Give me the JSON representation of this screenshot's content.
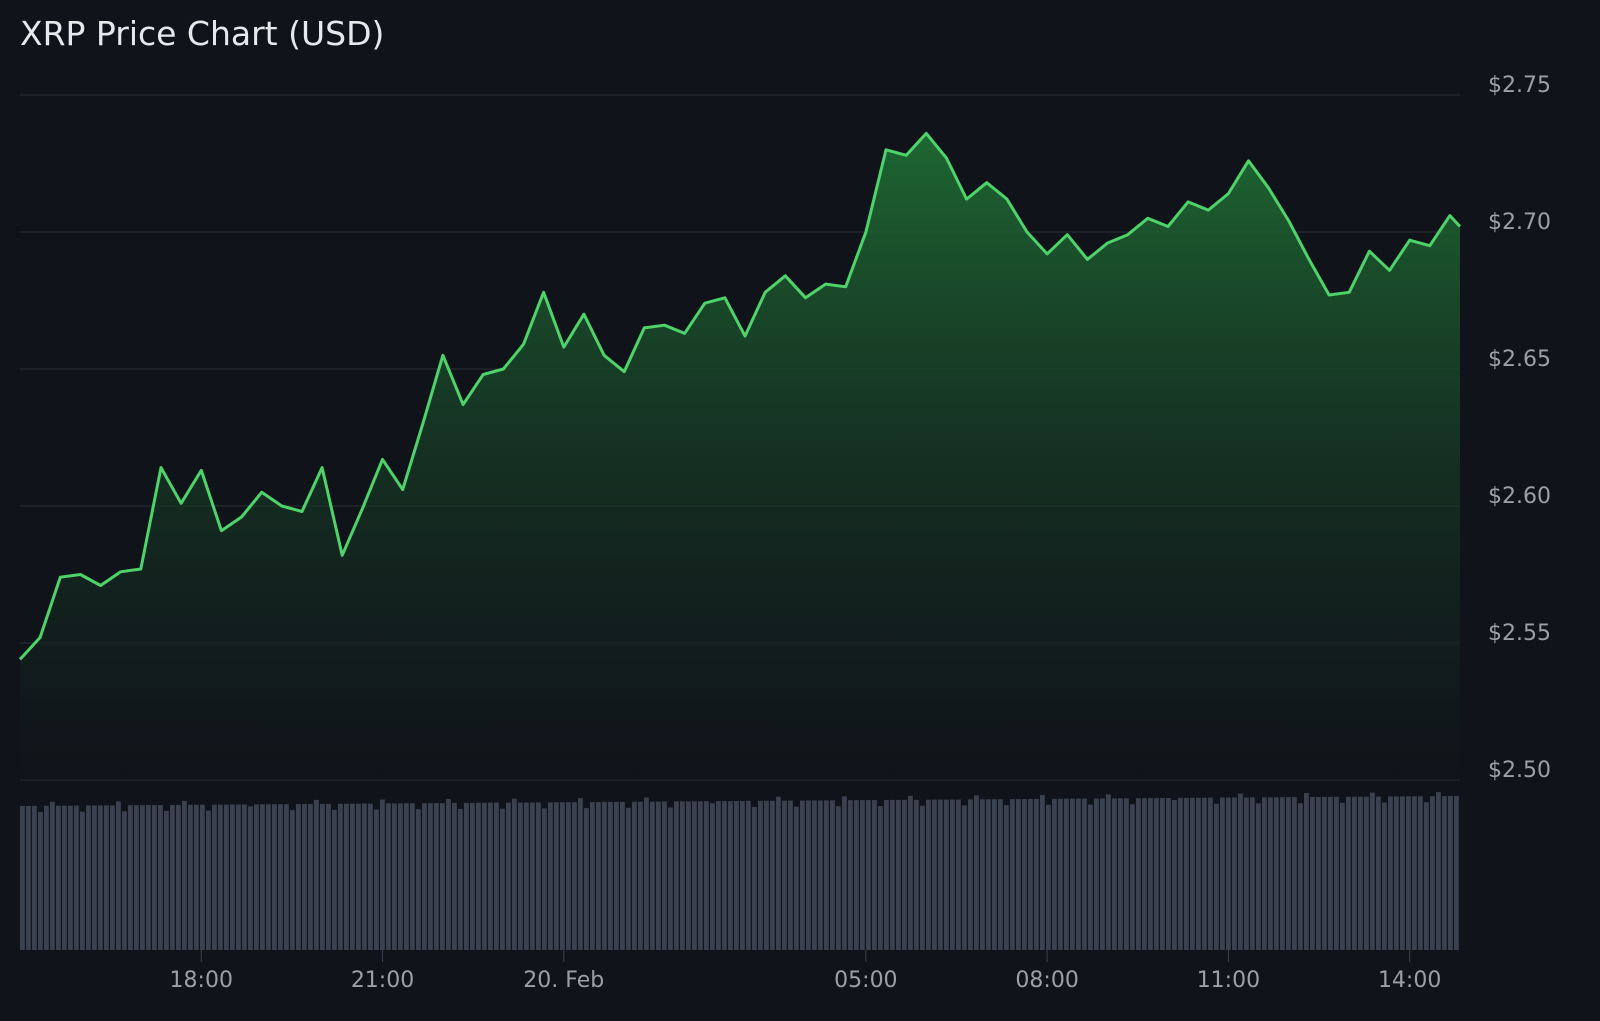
{
  "chart_data": {
    "type": "area",
    "title": "XRP Price Chart (USD)",
    "y_unit_prefix": "$",
    "y_ticks": [
      "$2.75",
      "$2.70",
      "$2.65",
      "$2.60",
      "$2.55",
      "$2.50"
    ],
    "y_tick_values": [
      2.75,
      2.7,
      2.65,
      2.6,
      2.55,
      2.5
    ],
    "ylim": [
      2.5,
      2.75
    ],
    "x_ticks": [
      "18:00",
      "21:00",
      "20. Feb",
      "05:00",
      "08:00",
      "11:00",
      "14:00"
    ],
    "x_tick_times": [
      "2025-02-19 18:00",
      "2025-02-19 21:00",
      "2025-02-20 00:00",
      "2025-02-20 05:00",
      "2025-02-20 08:00",
      "2025-02-20 11:00",
      "2025-02-20 14:00"
    ],
    "grid": "horizontal",
    "line_color": "#4ed36a",
    "fill_color": "#1f6b33",
    "volume_color": "#3a4250",
    "series": [
      {
        "x": [
          "2025-02-19 15:00",
          "2025-02-19 15:20",
          "2025-02-19 15:40",
          "2025-02-19 16:00",
          "2025-02-19 16:20",
          "2025-02-19 16:40",
          "2025-02-19 17:00",
          "2025-02-19 17:20",
          "2025-02-19 17:40",
          "2025-02-19 18:00",
          "2025-02-19 18:20",
          "2025-02-19 18:40",
          "2025-02-19 19:00",
          "2025-02-19 19:20",
          "2025-02-19 19:40",
          "2025-02-19 20:00",
          "2025-02-19 20:20",
          "2025-02-19 20:40",
          "2025-02-19 21:00",
          "2025-02-19 21:20",
          "2025-02-19 21:40",
          "2025-02-19 22:00",
          "2025-02-19 22:20",
          "2025-02-19 22:40",
          "2025-02-19 23:00",
          "2025-02-19 23:20",
          "2025-02-19 23:40",
          "2025-02-20 00:00",
          "2025-02-20 00:20",
          "2025-02-20 00:40",
          "2025-02-20 01:00",
          "2025-02-20 01:20",
          "2025-02-20 01:40",
          "2025-02-20 02:00",
          "2025-02-20 02:20",
          "2025-02-20 02:40",
          "2025-02-20 03:00",
          "2025-02-20 03:20",
          "2025-02-20 03:40",
          "2025-02-20 04:00",
          "2025-02-20 04:20",
          "2025-02-20 04:40",
          "2025-02-20 05:00",
          "2025-02-20 05:20",
          "2025-02-20 05:40",
          "2025-02-20 06:00",
          "2025-02-20 06:20",
          "2025-02-20 06:40",
          "2025-02-20 07:00",
          "2025-02-20 07:20",
          "2025-02-20 07:40",
          "2025-02-20 08:00",
          "2025-02-20 08:20",
          "2025-02-20 08:40",
          "2025-02-20 09:00",
          "2025-02-20 09:20",
          "2025-02-20 09:40",
          "2025-02-20 10:00",
          "2025-02-20 10:20",
          "2025-02-20 10:40",
          "2025-02-20 11:00",
          "2025-02-20 11:20",
          "2025-02-20 11:40",
          "2025-02-20 12:00",
          "2025-02-20 12:20",
          "2025-02-20 12:40",
          "2025-02-20 13:00",
          "2025-02-20 13:20",
          "2025-02-20 13:40",
          "2025-02-20 14:00",
          "2025-02-20 14:20",
          "2025-02-20 14:40",
          "2025-02-20 14:50"
        ],
        "values": [
          2.544,
          2.552,
          2.574,
          2.575,
          2.571,
          2.576,
          2.577,
          2.614,
          2.601,
          2.613,
          2.591,
          2.596,
          2.605,
          2.6,
          2.598,
          2.614,
          2.582,
          2.599,
          2.617,
          2.606,
          2.63,
          2.655,
          2.637,
          2.648,
          2.65,
          2.659,
          2.678,
          2.658,
          2.67,
          2.655,
          2.649,
          2.665,
          2.666,
          2.663,
          2.674,
          2.676,
          2.662,
          2.678,
          2.684,
          2.676,
          2.681,
          2.68,
          2.7,
          2.73,
          2.728,
          2.736,
          2.727,
          2.712,
          2.718,
          2.712,
          2.7,
          2.692,
          2.699,
          2.69,
          2.696,
          2.699,
          2.705,
          2.702,
          2.711,
          2.708,
          2.714,
          2.726,
          2.716,
          2.704,
          2.69,
          2.677,
          2.678,
          2.693,
          2.686,
          2.697,
          2.695,
          2.706,
          2.702
        ]
      }
    ]
  }
}
